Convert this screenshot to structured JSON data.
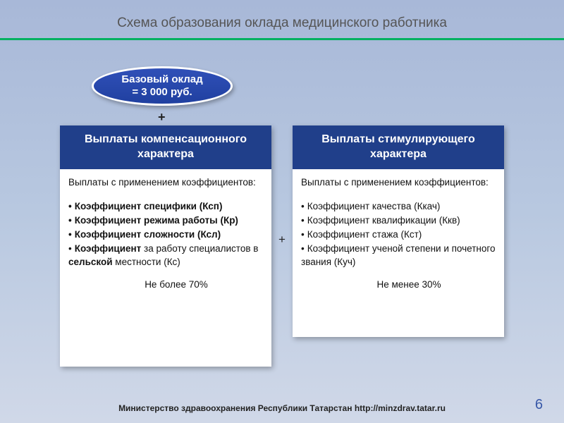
{
  "title": "Схема образования оклада медицинского работника",
  "oval": {
    "line1": "Базовый оклад",
    "line2": "= 3 000 руб."
  },
  "plus1": "+",
  "plus2": "+",
  "left": {
    "header": "Выплаты компенсационного характера",
    "lead": "Выплаты с применением коэффициентов:",
    "items": [
      "Коэффициент специфики (Ксп)",
      "Коэффициент режима работы (Кр)",
      "Коэффициент сложности (Ксл)",
      "Коэффициент за работу специалистов в сельской местности (Кс)"
    ],
    "limit": "Не более 70%"
  },
  "right": {
    "header": "Выплаты стимулирующего характера",
    "lead": "Выплаты с применением коэффициентов:",
    "items": [
      "Коэффициент качества (Ккач)",
      "Коэффициент квалификации (Ккв)",
      "Коэффициент стажа (Кст)",
      "Коэффициент ученой степени и почетного звания (Куч)"
    ],
    "limit": "Не менее 30%"
  },
  "footer": "Министерство здравоохранения Республики Татарстан http://minzdrav.tatar.ru",
  "page": "6",
  "colors": {
    "header_bg": "#203f8a",
    "oval_bg": "#2848a8",
    "divider": "#00b060",
    "bg_top": "#a8b8d8",
    "bg_bottom": "#d0d8e8"
  }
}
